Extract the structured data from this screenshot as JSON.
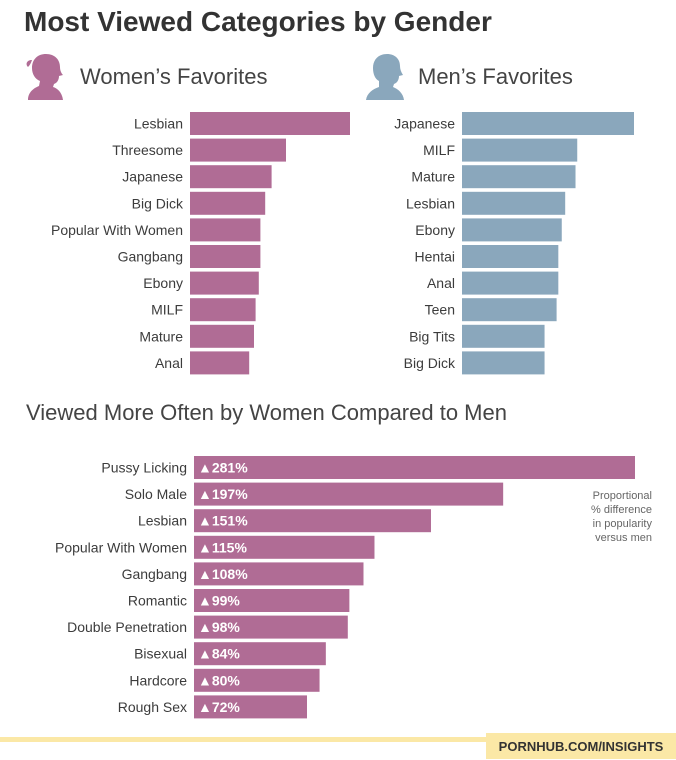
{
  "title": "Most Viewed Categories by Gender",
  "colors": {
    "women": "#b06c95",
    "men": "#8aa7bc",
    "diff": "#b06c95",
    "footer": "#fbe8a6"
  },
  "panels": {
    "women": {
      "label": "Women’s Favorites",
      "icon": "woman-silhouette-icon"
    },
    "men": {
      "label": "Men’s Favorites",
      "icon": "man-silhouette-icon"
    }
  },
  "section_title": "Viewed More Often by Women Compared to Men",
  "note": "Proportional\n% difference\nin popularity\nversus men",
  "footer": "PORNHUB.COM/INSIGHTS",
  "chart_data": [
    {
      "type": "bar",
      "title": "Women’s Favorites",
      "categories": [
        "Lesbian",
        "Threesome",
        "Japanese",
        "Big Dick",
        "Popular With Women",
        "Gangbang",
        "Ebony",
        "MILF",
        "Mature",
        "Anal"
      ],
      "values": [
        100,
        60,
        51,
        47,
        44,
        44,
        43,
        41,
        40,
        37
      ],
      "orientation": "horizontal"
    },
    {
      "type": "bar",
      "title": "Men’s Favorites",
      "categories": [
        "Japanese",
        "MILF",
        "Mature",
        "Lesbian",
        "Ebony",
        "Hentai",
        "Anal",
        "Teen",
        "Big Tits",
        "Big Dick"
      ],
      "values": [
        100,
        67,
        66,
        60,
        58,
        56,
        56,
        55,
        48,
        48
      ],
      "orientation": "horizontal"
    },
    {
      "type": "bar",
      "title": "Viewed More Often by Women Compared to Men",
      "categories": [
        "Pussy Licking",
        "Solo Male",
        "Lesbian",
        "Popular With Women",
        "Gangbang",
        "Romantic",
        "Double Penetration",
        "Bisexual",
        "Hardcore",
        "Rough Sex"
      ],
      "values": [
        281,
        197,
        151,
        115,
        108,
        99,
        98,
        84,
        80,
        72
      ],
      "labels": [
        "▲281%",
        "▲197%",
        "▲151%",
        "▲115%",
        "▲108%",
        "▲99%",
        "▲98%",
        "▲84%",
        "▲80%",
        "▲72%"
      ],
      "orientation": "horizontal"
    }
  ]
}
